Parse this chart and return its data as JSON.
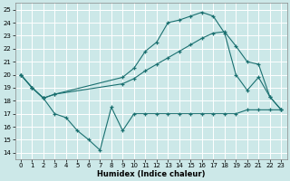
{
  "xlabel": "Humidex (Indice chaleur)",
  "background_color": "#cce8e8",
  "grid_color": "#b0d0d0",
  "line_color": "#1a7070",
  "xlim": [
    -0.5,
    23.5
  ],
  "ylim": [
    13.5,
    25.5
  ],
  "yticks": [
    14,
    15,
    16,
    17,
    18,
    19,
    20,
    21,
    22,
    23,
    24,
    25
  ],
  "xticks": [
    0,
    1,
    2,
    3,
    4,
    5,
    6,
    7,
    8,
    9,
    10,
    11,
    12,
    13,
    14,
    15,
    16,
    17,
    18,
    19,
    20,
    21,
    22,
    23
  ],
  "line1_x": [
    0,
    1,
    2,
    3,
    4,
    5,
    6,
    7,
    8,
    9,
    10,
    11,
    12,
    13,
    14,
    15,
    16,
    17,
    18,
    19,
    20,
    21,
    22,
    23
  ],
  "line1_y": [
    20.0,
    19.0,
    18.2,
    17.0,
    16.7,
    15.7,
    15.0,
    14.2,
    17.5,
    15.7,
    17.0,
    17.0,
    17.0,
    17.0,
    17.0,
    17.0,
    17.0,
    17.0,
    17.0,
    17.0,
    17.3,
    17.3,
    17.3,
    17.3
  ],
  "line2_x": [
    0,
    1,
    2,
    3,
    9,
    10,
    11,
    12,
    13,
    14,
    15,
    16,
    17,
    18,
    19,
    20,
    21,
    22,
    23
  ],
  "line2_y": [
    20.0,
    19.0,
    18.2,
    18.5,
    19.8,
    20.5,
    21.8,
    22.5,
    24.0,
    24.2,
    24.5,
    24.8,
    24.5,
    23.2,
    20.0,
    18.8,
    19.8,
    18.3,
    17.3
  ],
  "line3_x": [
    0,
    1,
    2,
    3,
    9,
    10,
    11,
    12,
    13,
    14,
    15,
    16,
    17,
    18,
    19,
    20,
    21,
    22,
    23
  ],
  "line3_y": [
    20.0,
    19.0,
    18.2,
    18.5,
    19.3,
    19.7,
    20.3,
    20.8,
    21.3,
    21.8,
    22.3,
    22.8,
    23.2,
    23.3,
    22.2,
    21.0,
    20.8,
    18.3,
    17.3
  ]
}
